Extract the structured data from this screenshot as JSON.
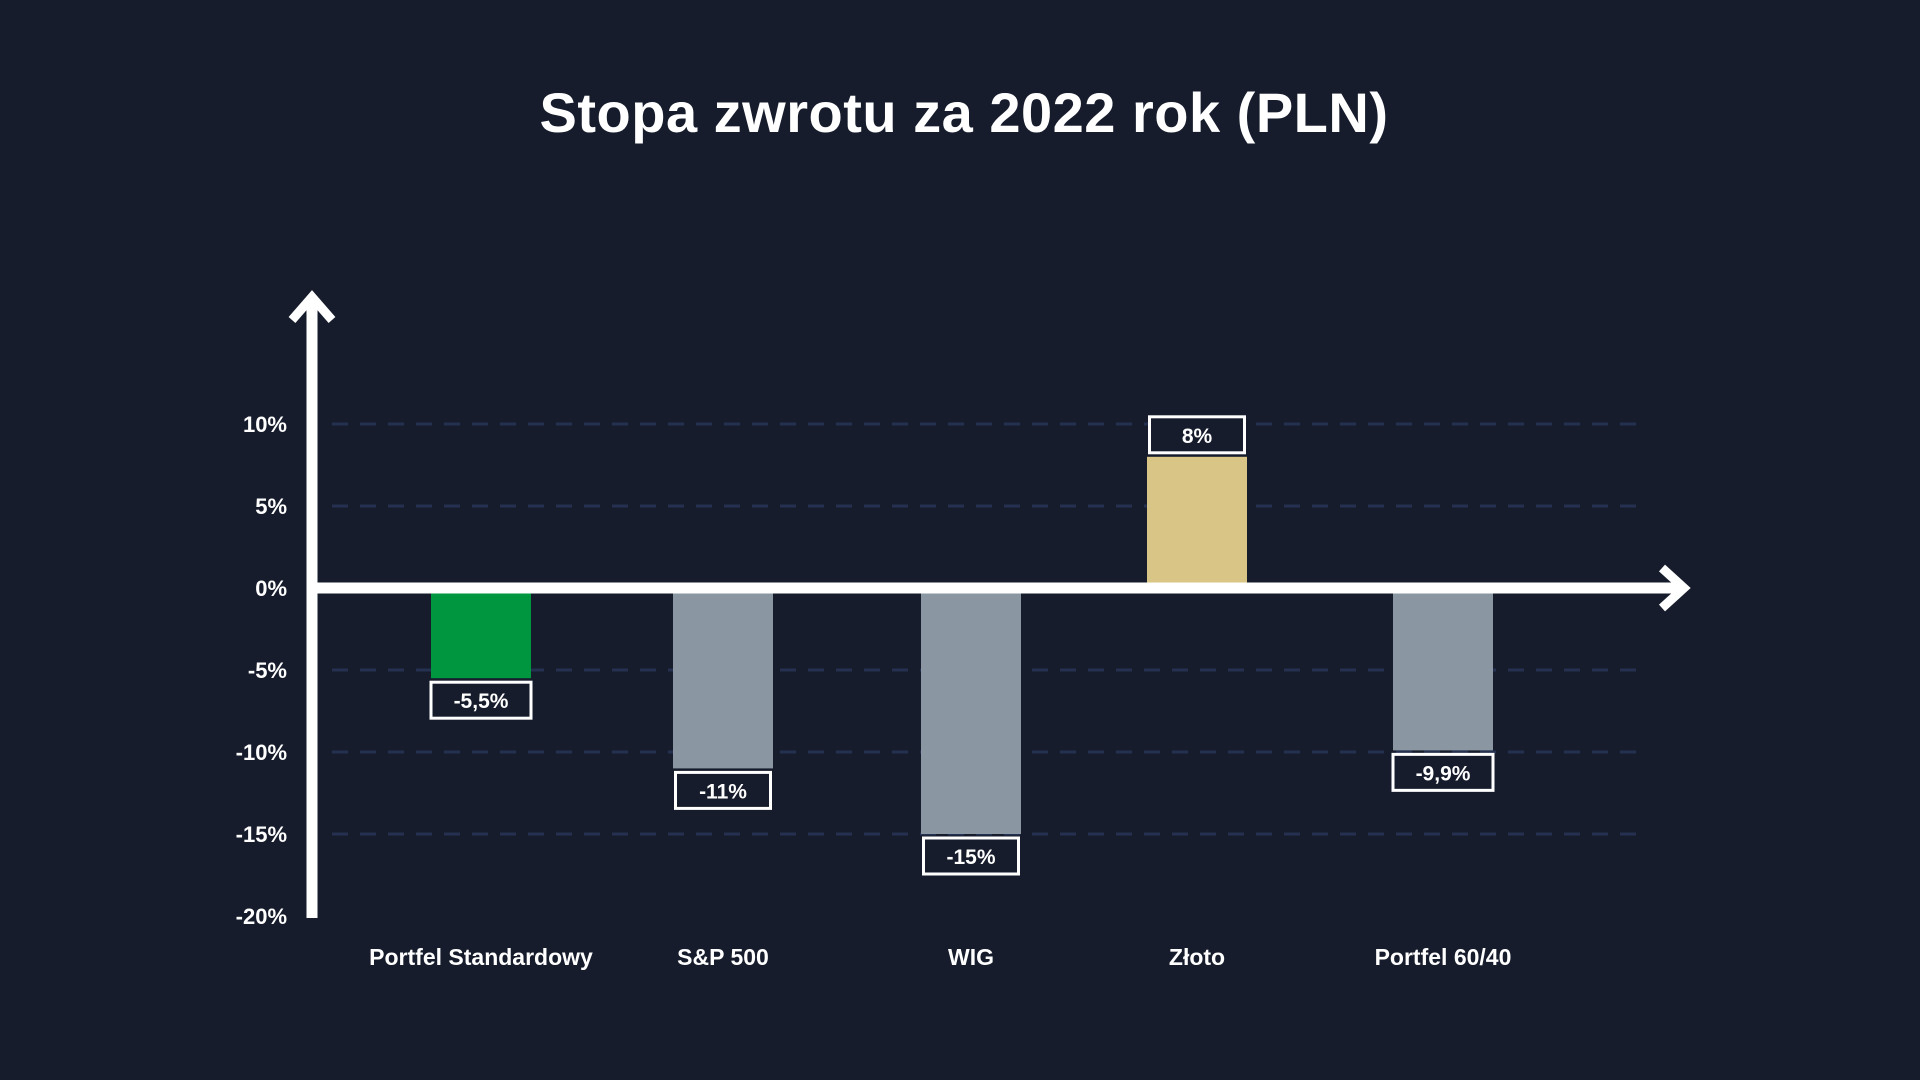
{
  "chart_data": {
    "type": "bar",
    "title": "Stopa zwrotu za 2022 rok (PLN)",
    "xlabel": "",
    "ylabel": "",
    "ylim": [
      -20,
      10
    ],
    "yticks": [
      10,
      5,
      0,
      -5,
      -10,
      -15,
      -20
    ],
    "ytick_labels": [
      "10%",
      "5%",
      "0%",
      "-5%",
      "-10%",
      "-15%",
      "-20%"
    ],
    "grid": true,
    "legend": "none",
    "categories": [
      "Portfel Standardowy",
      "S&P 500",
      "WIG",
      "Złoto",
      "Portfel 60/40"
    ],
    "values": [
      -5.5,
      -11,
      -15,
      8,
      -9.9
    ],
    "data_labels": [
      "-5,5%",
      "-11%",
      "-15%",
      "8%",
      "-9,9%"
    ],
    "colors": [
      "#00963f",
      "#8a97a3",
      "#8a97a3",
      "#d9c686",
      "#8a97a3"
    ]
  },
  "style": {
    "background": "#161c2c",
    "axis_color": "#ffffff",
    "grid_color": "#253150",
    "label_box_fill": "#161c2c"
  }
}
